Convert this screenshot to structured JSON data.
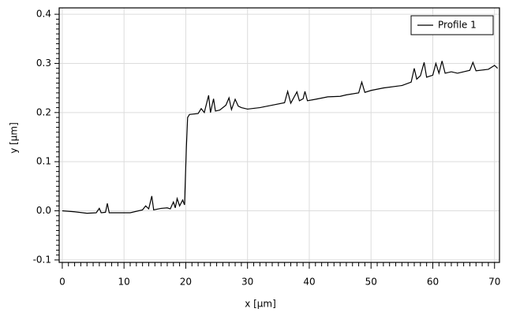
{
  "chart_data": {
    "type": "line",
    "x_label": "x [µm]",
    "y_label": "y [µm]",
    "xlim": [
      -0.5,
      70.8
    ],
    "ylim": [
      -0.105,
      0.413
    ],
    "xticks": [
      0,
      10,
      20,
      30,
      40,
      50,
      60,
      70
    ],
    "yticks": [
      -0.1,
      {
        "value": 0,
        "label": "0.0"
      },
      0.1,
      0.2,
      0.3,
      0.4
    ],
    "grid": true,
    "legend": "upper right",
    "series": [
      {
        "name": "Profile 1",
        "color": "#000000",
        "x": [
          0,
          2,
          4,
          5.5,
          6,
          6.3,
          7,
          7.3,
          7.6,
          9,
          11,
          13,
          13.5,
          14,
          14.5,
          14.8,
          16,
          17,
          17.5,
          18,
          18.3,
          18.6,
          19,
          19.5,
          19.8,
          20.1,
          20.3,
          20.6,
          22,
          22.5,
          23,
          23.7,
          24,
          24.5,
          24.8,
          25.5,
          26.5,
          27,
          27.4,
          28,
          28.5,
          29,
          30,
          32,
          34,
          36,
          36.5,
          37,
          38,
          38.4,
          39,
          39.3,
          39.7,
          41,
          43,
          45,
          46,
          48,
          48.5,
          49,
          50,
          52,
          55,
          56.5,
          57,
          57.4,
          58,
          58.6,
          59,
          60,
          60.5,
          61,
          61.5,
          62,
          63,
          64,
          66,
          66.5,
          67,
          69,
          70,
          70.5
        ],
        "values": [
          0.0,
          -0.002,
          -0.005,
          -0.004,
          0.005,
          -0.004,
          -0.003,
          0.015,
          -0.004,
          -0.004,
          -0.004,
          0.002,
          0.01,
          0.004,
          0.03,
          0.002,
          0.005,
          0.006,
          0.004,
          0.018,
          0.006,
          0.025,
          0.01,
          0.022,
          0.012,
          0.13,
          0.19,
          0.196,
          0.198,
          0.208,
          0.2,
          0.235,
          0.2,
          0.228,
          0.203,
          0.205,
          0.215,
          0.23,
          0.206,
          0.227,
          0.213,
          0.21,
          0.207,
          0.21,
          0.215,
          0.22,
          0.243,
          0.219,
          0.242,
          0.224,
          0.228,
          0.243,
          0.224,
          0.227,
          0.232,
          0.233,
          0.236,
          0.24,
          0.262,
          0.241,
          0.245,
          0.25,
          0.255,
          0.262,
          0.29,
          0.268,
          0.275,
          0.302,
          0.272,
          0.276,
          0.3,
          0.28,
          0.305,
          0.28,
          0.283,
          0.28,
          0.286,
          0.302,
          0.285,
          0.288,
          0.296,
          0.29
        ]
      }
    ]
  }
}
